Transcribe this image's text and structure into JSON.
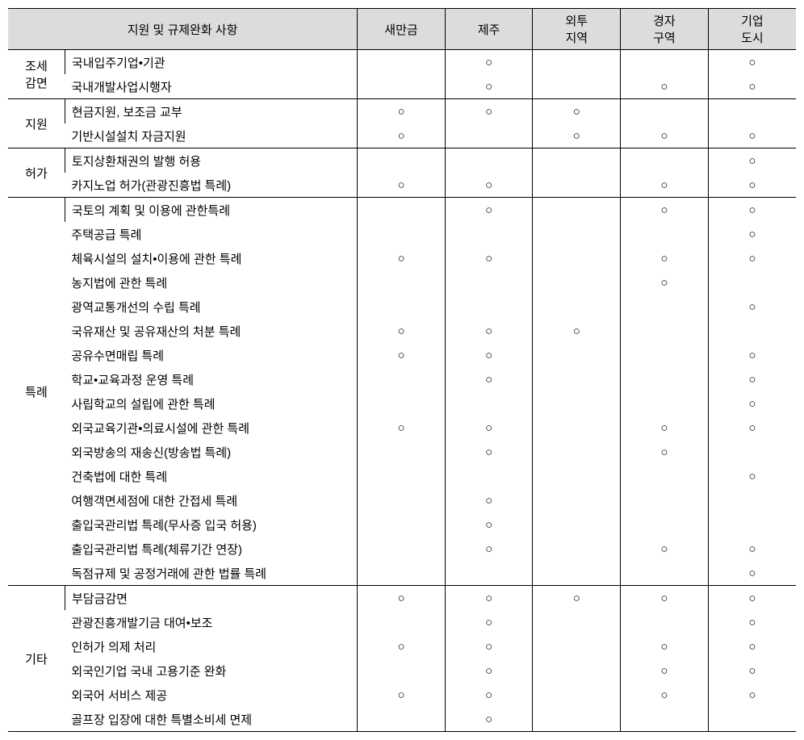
{
  "mark": "○",
  "header": {
    "main": "지원 및 규제완화 사항",
    "zones": [
      "새만금",
      "제주",
      "외투\n지역",
      "경자\n구역",
      "기업\n도시"
    ]
  },
  "categories": [
    {
      "label": "조세\n감면",
      "rows": [
        {
          "item": "국내입주기업•기관",
          "marks": [
            "",
            "○",
            "",
            "",
            "○"
          ]
        },
        {
          "item": "국내개발사업시행자",
          "marks": [
            "",
            "○",
            "",
            "○",
            "○"
          ]
        }
      ]
    },
    {
      "label": "지원",
      "rows": [
        {
          "item": "현금지원, 보조금 교부",
          "marks": [
            "○",
            "○",
            "○",
            "",
            ""
          ]
        },
        {
          "item": "기반시설설치 자금지원",
          "marks": [
            "○",
            "",
            "○",
            "○",
            "○"
          ]
        }
      ]
    },
    {
      "label": "허가",
      "rows": [
        {
          "item": "토지상환채권의 발행 허용",
          "marks": [
            "",
            "",
            "",
            "",
            "○"
          ]
        },
        {
          "item": "카지노업 허가(관광진흥법 특례)",
          "marks": [
            "○",
            "○",
            "",
            "○",
            "○"
          ]
        }
      ]
    },
    {
      "label": "특례",
      "rows": [
        {
          "item": "국토의 계획 및 이용에 관한특례",
          "marks": [
            "",
            "○",
            "",
            "○",
            "○"
          ]
        },
        {
          "item": "주택공급 특례",
          "marks": [
            "",
            "",
            "",
            "",
            "○"
          ]
        },
        {
          "item": "체육시설의 설치•이용에 관한 특례",
          "marks": [
            "○",
            "○",
            "",
            "○",
            "○"
          ]
        },
        {
          "item": "농지법에 관한 특례",
          "marks": [
            "",
            "",
            "",
            "○",
            ""
          ]
        },
        {
          "item": "광역교통개선의 수립 특례",
          "marks": [
            "",
            "",
            "",
            "",
            "○"
          ]
        },
        {
          "item": "국유재산 및 공유재산의 처분 특례",
          "marks": [
            "○",
            "○",
            "○",
            "",
            ""
          ]
        },
        {
          "item": "공유수면매립 특례",
          "marks": [
            "○",
            "○",
            "",
            "",
            "○"
          ]
        },
        {
          "item": "학교•교육과정 운영 특례",
          "marks": [
            "",
            "○",
            "",
            "",
            "○"
          ]
        },
        {
          "item": "사립학교의 설립에 관한 특례",
          "marks": [
            "",
            "",
            "",
            "",
            "○"
          ]
        },
        {
          "item": "외국교육기관•의료시설에 관한 특례",
          "marks": [
            "○",
            "○",
            "",
            "○",
            "○"
          ]
        },
        {
          "item": "외국방송의 재송신(방송법 특례)",
          "marks": [
            "",
            "○",
            "",
            "○",
            ""
          ]
        },
        {
          "item": "건축법에 대한 특례",
          "marks": [
            "",
            "",
            "",
            "",
            "○"
          ]
        },
        {
          "item": "여행객면세점에 대한 간접세 특례",
          "marks": [
            "",
            "○",
            "",
            "",
            ""
          ]
        },
        {
          "item": "출입국관리법 특례(무사증 입국 허용)",
          "marks": [
            "",
            "○",
            "",
            "",
            ""
          ]
        },
        {
          "item": "출입국관리법 특례(체류기간 연장)",
          "marks": [
            "",
            "○",
            "",
            "○",
            "○"
          ]
        },
        {
          "item": "독점규제 및 공정거래에 관한 법률 특례",
          "marks": [
            "",
            "",
            "",
            "",
            "○"
          ]
        }
      ]
    },
    {
      "label": "기타",
      "rows": [
        {
          "item": "부담금감면",
          "marks": [
            "○",
            "○",
            "○",
            "○",
            "○"
          ]
        },
        {
          "item": "관광진흥개발기금 대여•보조",
          "marks": [
            "",
            "○",
            "",
            "",
            "○"
          ]
        },
        {
          "item": "인허가 의제 처리",
          "marks": [
            "○",
            "○",
            "",
            "○",
            "○"
          ]
        },
        {
          "item": "외국인기업 국내 고용기준 완화",
          "marks": [
            "",
            "○",
            "",
            "○",
            "○"
          ]
        },
        {
          "item": "외국어 서비스 제공",
          "marks": [
            "○",
            "○",
            "",
            "○",
            "○"
          ]
        },
        {
          "item": "골프장 입장에 대한 특별소비세 면제",
          "marks": [
            "",
            "○",
            "",
            "",
            ""
          ]
        }
      ]
    }
  ]
}
